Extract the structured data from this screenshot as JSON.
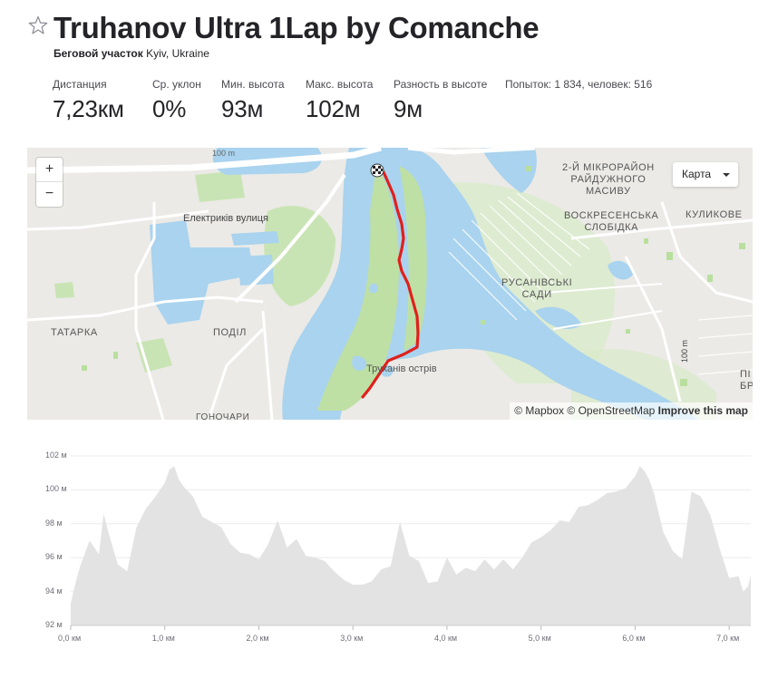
{
  "header": {
    "title": "Truhanov Ultra 1Lap by Comanche",
    "segment_type": "Беговой участок",
    "location": "Kyiv, Ukraine"
  },
  "stats": [
    {
      "label": "Дистанция",
      "value": "7,23км"
    },
    {
      "label": "Ср. уклон",
      "value": "0%"
    },
    {
      "label": "Мин. высота",
      "value": "93м"
    },
    {
      "label": "Макс. высота",
      "value": "102м"
    },
    {
      "label": "Разность в высоте",
      "value": "9м"
    }
  ],
  "attempts": "Попыток: 1 834, человек: 516",
  "map": {
    "zoom_in": "+",
    "zoom_out": "−",
    "map_type": "Карта",
    "attribution": {
      "mapbox": "© Mapbox",
      "osm": "© OpenStreetMap",
      "improve": "Improve this map"
    },
    "labels": {
      "electrikiv": "Електриків вулиця",
      "tatarka": "ТАТАРКА",
      "podil": "ПОДІЛ",
      "truhaniv": "Труханів острів",
      "microrayon": "2-Й МІКРОРАЙОН\nРАЙДУЖНОГО\nМАСИВУ",
      "voskresenska": "ВОСКРЕСЕНСЬКА\nСЛОБІДКА",
      "rusanivski": "РУСАНІВСЬКІ\nСАДИ",
      "kulykove": "КУЛИКОВЕ",
      "gonchary": "ГОНОЧАРИ",
      "hundred_m": "100 m",
      "pivdenno": "ПІ\nБРО",
      "top_100m": "100 m"
    },
    "colors": {
      "water": "#a9d3ee",
      "park": "#c8e6b0",
      "route": "#e0201b"
    }
  },
  "chart_data": {
    "type": "area",
    "xlabel": "",
    "ylabel": "",
    "x_unit": "км",
    "y_unit": "м",
    "ylim": [
      92,
      102
    ],
    "xlim": [
      0,
      7.23
    ],
    "y_ticks": [
      "92 м",
      "94 м",
      "96 м",
      "98 м",
      "100 м",
      "102 м"
    ],
    "x_ticks": [
      "0,0 км",
      "1,0 км",
      "2,0 км",
      "3,0 км",
      "4,0 км",
      "5,0 км",
      "6,0 км",
      "7,0 км"
    ],
    "grid": true,
    "fill_color": "#e3e3e3",
    "x": [
      0.0,
      0.05,
      0.1,
      0.2,
      0.3,
      0.35,
      0.4,
      0.5,
      0.6,
      0.7,
      0.8,
      0.9,
      1.0,
      1.05,
      1.1,
      1.15,
      1.2,
      1.3,
      1.4,
      1.5,
      1.6,
      1.7,
      1.8,
      1.9,
      2.0,
      2.1,
      2.2,
      2.3,
      2.4,
      2.5,
      2.6,
      2.7,
      2.8,
      2.9,
      3.0,
      3.1,
      3.2,
      3.3,
      3.4,
      3.5,
      3.6,
      3.7,
      3.8,
      3.9,
      4.0,
      4.1,
      4.2,
      4.3,
      4.4,
      4.5,
      4.6,
      4.7,
      4.8,
      4.9,
      5.0,
      5.1,
      5.2,
      5.3,
      5.4,
      5.5,
      5.6,
      5.7,
      5.8,
      5.9,
      6.0,
      6.05,
      6.1,
      6.15,
      6.2,
      6.3,
      6.4,
      6.5,
      6.6,
      6.7,
      6.8,
      6.9,
      7.0,
      7.1,
      7.15,
      7.2,
      7.23
    ],
    "values": [
      93.3,
      94.5,
      95.5,
      97.0,
      96.2,
      98.6,
      97.5,
      95.6,
      95.2,
      97.8,
      98.9,
      99.6,
      100.4,
      101.2,
      101.4,
      100.6,
      100.2,
      99.6,
      98.4,
      98.1,
      97.8,
      96.8,
      96.3,
      96.2,
      95.9,
      96.8,
      98.2,
      96.6,
      97.1,
      96.1,
      96.0,
      95.8,
      95.2,
      94.7,
      94.4,
      94.4,
      94.6,
      95.3,
      95.5,
      98.1,
      96.1,
      95.8,
      94.5,
      94.6,
      96.0,
      95.0,
      95.4,
      95.2,
      95.9,
      95.3,
      95.9,
      95.3,
      96.0,
      96.9,
      97.2,
      97.6,
      98.2,
      98.1,
      99.0,
      99.1,
      99.4,
      99.8,
      99.9,
      100.1,
      100.8,
      101.4,
      101.1,
      100.6,
      99.8,
      97.5,
      96.4,
      95.9,
      99.9,
      99.6,
      98.5,
      96.5,
      94.8,
      94.9,
      94.0,
      94.3,
      95.0
    ]
  }
}
